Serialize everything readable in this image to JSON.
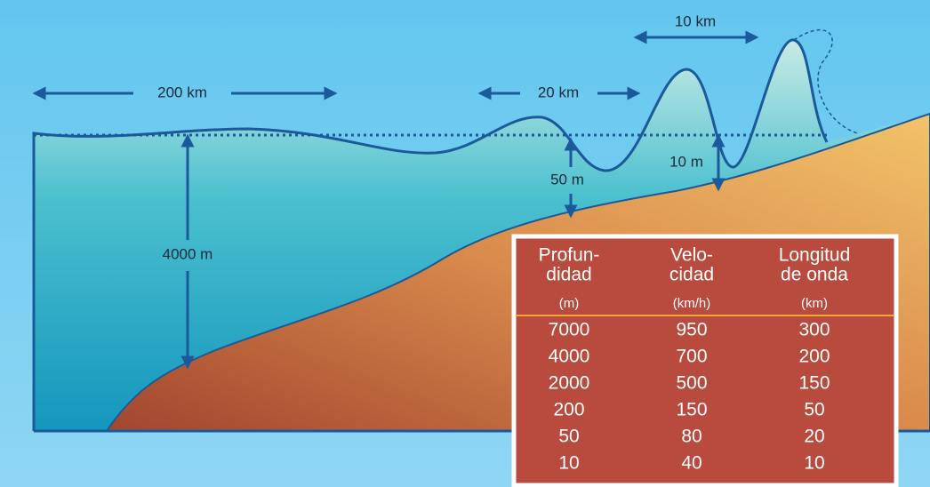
{
  "labels": {
    "width_open": "200 km",
    "width_mid": "20 km",
    "width_shore": "10 km",
    "depth_open": "4000 m",
    "height_mid": "50 m",
    "height_shore": "10 m"
  },
  "table": {
    "headers": [
      [
        "Profun-",
        "didad"
      ],
      [
        "Velo-",
        "cidad"
      ],
      [
        "Longitud",
        "de onda"
      ]
    ],
    "units": [
      "(m)",
      "(km/h)",
      "(km)"
    ],
    "rows": [
      [
        7000,
        950,
        300
      ],
      [
        4000,
        700,
        200
      ],
      [
        2000,
        500,
        150
      ],
      [
        200,
        150,
        50
      ],
      [
        50,
        80,
        20
      ],
      [
        10,
        40,
        10
      ]
    ]
  }
}
